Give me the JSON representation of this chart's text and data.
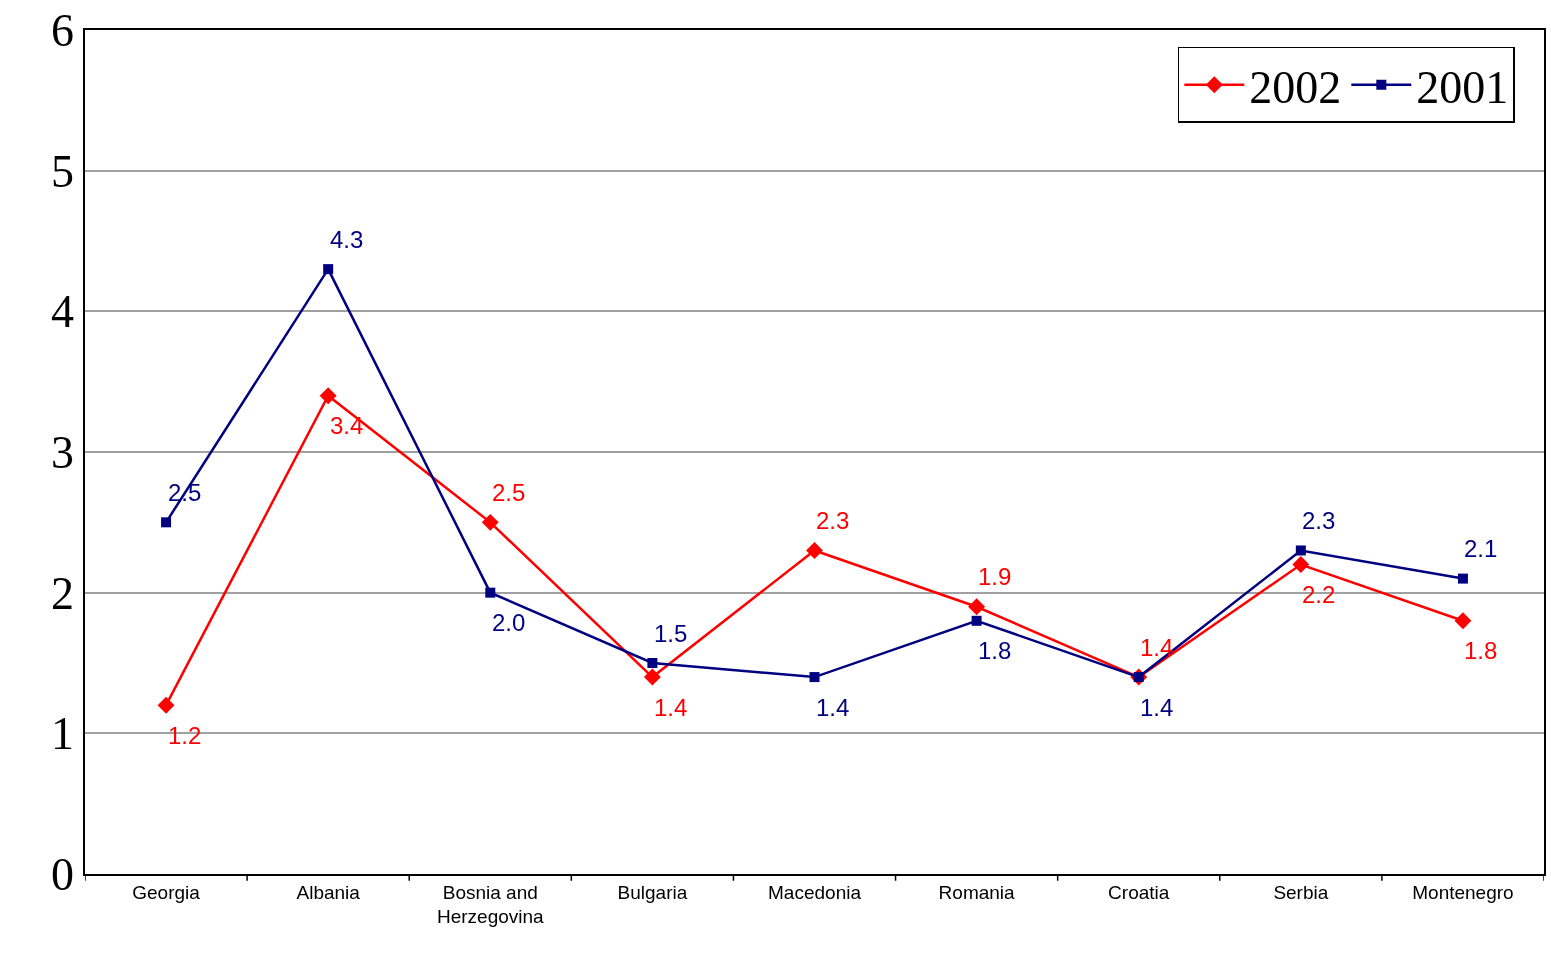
{
  "chart_data": {
    "type": "line",
    "categories": [
      "Georgia",
      "Albania",
      "Bosnia and Herzegovina",
      "Bulgaria",
      "Macedonia",
      "Romania",
      "Croatia",
      "Serbia",
      "Montenegro"
    ],
    "series": [
      {
        "name": "2002",
        "color": "#ff0000",
        "marker": "diamond",
        "values": [
          1.2,
          3.4,
          2.5,
          1.4,
          2.3,
          1.9,
          1.4,
          2.2,
          1.8
        ],
        "value_labels": [
          "1.2",
          "3.4",
          "2.5",
          "1.4",
          "2.3",
          "1.9",
          "1.4",
          "2.2",
          "1.8"
        ]
      },
      {
        "name": "2001",
        "color": "#000080",
        "marker": "square",
        "values": [
          2.5,
          4.3,
          2.0,
          1.5,
          1.4,
          1.8,
          1.4,
          2.3,
          2.1
        ],
        "value_labels": [
          "2.5",
          "4.3",
          "2.0",
          "1.5",
          "1.4",
          "1.8",
          "1.4",
          "2.3",
          "2.1"
        ]
      }
    ],
    "ylim": [
      0,
      6
    ],
    "yticks": [
      0,
      1,
      2,
      3,
      4,
      5,
      6
    ],
    "grid": "y",
    "legend": "top right",
    "line_style": "solid"
  }
}
